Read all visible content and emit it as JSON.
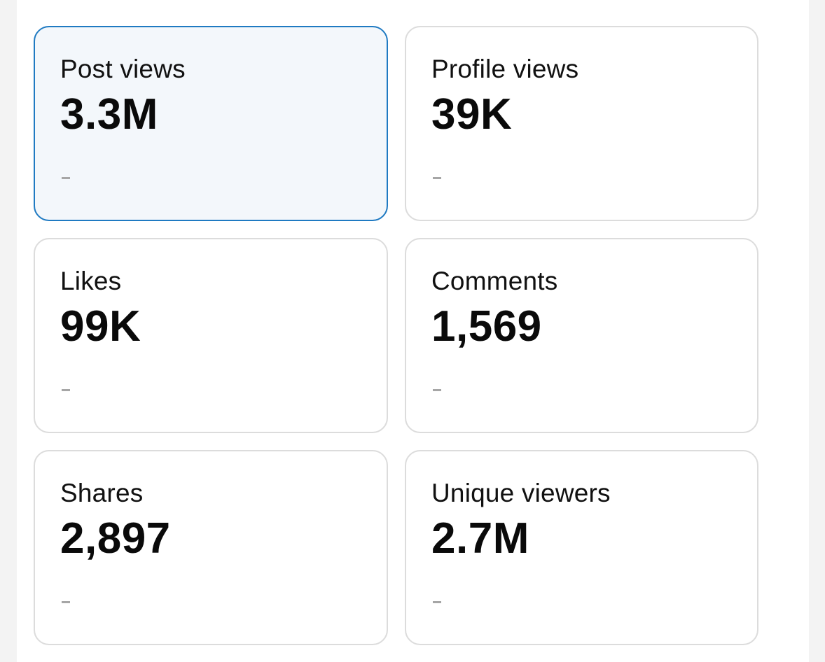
{
  "metrics": [
    {
      "label": "Post views",
      "value": "3.3M",
      "selected": true
    },
    {
      "label": "Profile views",
      "value": "39K",
      "selected": false
    },
    {
      "label": "Likes",
      "value": "99K",
      "selected": false
    },
    {
      "label": "Comments",
      "value": "1,569",
      "selected": false
    },
    {
      "label": "Shares",
      "value": "2,897",
      "selected": false
    },
    {
      "label": "Unique viewers",
      "value": "2.7M",
      "selected": false
    }
  ],
  "colors": {
    "selected_border": "#1f7ac2",
    "selected_background": "#f3f7fb",
    "card_border": "#dcdcdc",
    "delta_placeholder": "#a6a6a6"
  }
}
